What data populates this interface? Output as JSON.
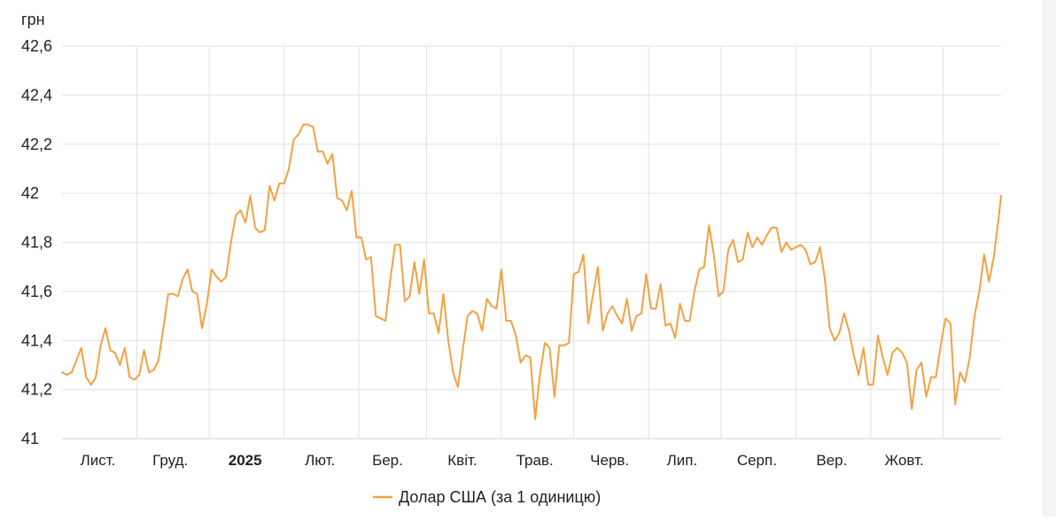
{
  "chart_data": {
    "type": "line",
    "ylabel": "грн",
    "ylim": [
      41,
      42.6
    ],
    "yticks": [
      "41",
      "41,2",
      "41,4",
      "41,6",
      "41,8",
      "42",
      "42,2",
      "42,4",
      "42,6"
    ],
    "ytick_values": [
      41,
      41.2,
      41.4,
      41.6,
      41.8,
      42,
      42.2,
      42.4,
      42.6
    ],
    "xlim": [
      "2024-10-01",
      "2025-10-25"
    ],
    "xticks": [
      {
        "date": "2024-11-01",
        "label": "Лист.",
        "bold": false
      },
      {
        "date": "2024-12-01",
        "label": "Груд.",
        "bold": false
      },
      {
        "date": "2025-01-01",
        "label": "2025",
        "bold": true
      },
      {
        "date": "2025-02-01",
        "label": "Лют.",
        "bold": false
      },
      {
        "date": "2025-03-01",
        "label": "Бер.",
        "bold": false
      },
      {
        "date": "2025-04-01",
        "label": "Квіт.",
        "bold": false
      },
      {
        "date": "2025-05-01",
        "label": "Трав.",
        "bold": false
      },
      {
        "date": "2025-06-01",
        "label": "Черв.",
        "bold": false
      },
      {
        "date": "2025-07-01",
        "label": "Лип.",
        "bold": false
      },
      {
        "date": "2025-08-01",
        "label": "Серп.",
        "bold": false
      },
      {
        "date": "2025-09-01",
        "label": "Вер.",
        "bold": false
      },
      {
        "date": "2025-10-01",
        "label": "Жовт.",
        "bold": false
      }
    ],
    "grid": true,
    "legend_position": "bottom-center",
    "series": [
      {
        "name": "Долар США (за 1 одиницю)",
        "color": "#f5a142",
        "points": [
          [
            "2024-10-01",
            41.27
          ],
          [
            "2024-10-03",
            41.26
          ],
          [
            "2024-10-05",
            41.27
          ],
          [
            "2024-10-07",
            41.32
          ],
          [
            "2024-10-09",
            41.37
          ],
          [
            "2024-10-11",
            41.25
          ],
          [
            "2024-10-13",
            41.22
          ],
          [
            "2024-10-15",
            41.25
          ],
          [
            "2024-10-17",
            41.38
          ],
          [
            "2024-10-19",
            41.45
          ],
          [
            "2024-10-21",
            41.36
          ],
          [
            "2024-10-23",
            41.35
          ],
          [
            "2024-10-25",
            41.3
          ],
          [
            "2024-10-27",
            41.37
          ],
          [
            "2024-10-29",
            41.25
          ],
          [
            "2024-10-31",
            41.24
          ],
          [
            "2024-11-02",
            41.26
          ],
          [
            "2024-11-04",
            41.36
          ],
          [
            "2024-11-06",
            41.27
          ],
          [
            "2024-11-08",
            41.28
          ],
          [
            "2024-11-10",
            41.32
          ],
          [
            "2024-11-12",
            41.45
          ],
          [
            "2024-11-14",
            41.59
          ],
          [
            "2024-11-16",
            41.59
          ],
          [
            "2024-11-18",
            41.58
          ],
          [
            "2024-11-20",
            41.65
          ],
          [
            "2024-11-22",
            41.69
          ],
          [
            "2024-11-24",
            41.6
          ],
          [
            "2024-11-26",
            41.59
          ],
          [
            "2024-11-28",
            41.45
          ],
          [
            "2024-11-30",
            41.55
          ],
          [
            "2024-12-02",
            41.69
          ],
          [
            "2024-12-04",
            41.66
          ],
          [
            "2024-12-06",
            41.64
          ],
          [
            "2024-12-08",
            41.66
          ],
          [
            "2024-12-10",
            41.8
          ],
          [
            "2024-12-12",
            41.91
          ],
          [
            "2024-12-14",
            41.93
          ],
          [
            "2024-12-16",
            41.88
          ],
          [
            "2024-12-18",
            41.99
          ],
          [
            "2024-12-20",
            41.86
          ],
          [
            "2024-12-22",
            41.84
          ],
          [
            "2024-12-24",
            41.85
          ],
          [
            "2024-12-26",
            42.03
          ],
          [
            "2024-12-28",
            41.97
          ],
          [
            "2024-12-30",
            42.04
          ],
          [
            "2025-01-01",
            42.04
          ],
          [
            "2025-01-03",
            42.1
          ],
          [
            "2025-01-05",
            42.22
          ],
          [
            "2025-01-07",
            42.24
          ],
          [
            "2025-01-09",
            42.28
          ],
          [
            "2025-01-11",
            42.28
          ],
          [
            "2025-01-13",
            42.27
          ],
          [
            "2025-01-15",
            42.17
          ],
          [
            "2025-01-17",
            42.17
          ],
          [
            "2025-01-19",
            42.12
          ],
          [
            "2025-01-21",
            42.16
          ],
          [
            "2025-01-23",
            41.98
          ],
          [
            "2025-01-25",
            41.97
          ],
          [
            "2025-01-27",
            41.93
          ],
          [
            "2025-01-29",
            42.01
          ],
          [
            "2025-01-31",
            41.82
          ],
          [
            "2025-02-02",
            41.82
          ],
          [
            "2025-02-04",
            41.73
          ],
          [
            "2025-02-06",
            41.74
          ],
          [
            "2025-02-08",
            41.5
          ],
          [
            "2025-02-10",
            41.49
          ],
          [
            "2025-02-12",
            41.48
          ],
          [
            "2025-02-14",
            41.65
          ],
          [
            "2025-02-16",
            41.79
          ],
          [
            "2025-02-18",
            41.79
          ],
          [
            "2025-02-20",
            41.56
          ],
          [
            "2025-02-22",
            41.58
          ],
          [
            "2025-02-24",
            41.72
          ],
          [
            "2025-02-26",
            41.59
          ],
          [
            "2025-02-28",
            41.73
          ],
          [
            "2025-03-02",
            41.51
          ],
          [
            "2025-03-04",
            41.51
          ],
          [
            "2025-03-06",
            41.43
          ],
          [
            "2025-03-08",
            41.59
          ],
          [
            "2025-03-10",
            41.4
          ],
          [
            "2025-03-12",
            41.27
          ],
          [
            "2025-03-14",
            41.21
          ],
          [
            "2025-03-16",
            41.36
          ],
          [
            "2025-03-18",
            41.5
          ],
          [
            "2025-03-20",
            41.52
          ],
          [
            "2025-03-22",
            41.51
          ],
          [
            "2025-03-24",
            41.44
          ],
          [
            "2025-03-26",
            41.57
          ],
          [
            "2025-03-28",
            41.54
          ],
          [
            "2025-03-30",
            41.53
          ],
          [
            "2025-04-01",
            41.69
          ],
          [
            "2025-04-03",
            41.48
          ],
          [
            "2025-04-05",
            41.48
          ],
          [
            "2025-04-07",
            41.42
          ],
          [
            "2025-04-09",
            41.31
          ],
          [
            "2025-04-11",
            41.34
          ],
          [
            "2025-04-13",
            41.33
          ],
          [
            "2025-04-15",
            41.08
          ],
          [
            "2025-04-17",
            41.26
          ],
          [
            "2025-04-19",
            41.39
          ],
          [
            "2025-04-21",
            41.37
          ],
          [
            "2025-04-23",
            41.17
          ],
          [
            "2025-04-25",
            41.38
          ],
          [
            "2025-04-27",
            41.38
          ],
          [
            "2025-04-29",
            41.39
          ],
          [
            "2025-05-01",
            41.67
          ],
          [
            "2025-05-03",
            41.68
          ],
          [
            "2025-05-05",
            41.75
          ],
          [
            "2025-05-07",
            41.47
          ],
          [
            "2025-05-09",
            41.59
          ],
          [
            "2025-05-11",
            41.7
          ],
          [
            "2025-05-13",
            41.44
          ],
          [
            "2025-05-15",
            41.51
          ],
          [
            "2025-05-17",
            41.54
          ],
          [
            "2025-05-19",
            41.5
          ],
          [
            "2025-05-21",
            41.47
          ],
          [
            "2025-05-23",
            41.57
          ],
          [
            "2025-05-25",
            41.44
          ],
          [
            "2025-05-27",
            41.5
          ],
          [
            "2025-05-29",
            41.51
          ],
          [
            "2025-05-31",
            41.67
          ],
          [
            "2025-06-02",
            41.53
          ],
          [
            "2025-06-04",
            41.53
          ],
          [
            "2025-06-06",
            41.63
          ],
          [
            "2025-06-08",
            41.46
          ],
          [
            "2025-06-10",
            41.47
          ],
          [
            "2025-06-12",
            41.41
          ],
          [
            "2025-06-14",
            41.55
          ],
          [
            "2025-06-16",
            41.48
          ],
          [
            "2025-06-18",
            41.48
          ],
          [
            "2025-06-20",
            41.6
          ],
          [
            "2025-06-22",
            41.69
          ],
          [
            "2025-06-24",
            41.7
          ],
          [
            "2025-06-26",
            41.87
          ],
          [
            "2025-06-28",
            41.75
          ],
          [
            "2025-06-30",
            41.58
          ],
          [
            "2025-07-02",
            41.6
          ],
          [
            "2025-07-04",
            41.77
          ],
          [
            "2025-07-06",
            41.81
          ],
          [
            "2025-07-08",
            41.72
          ],
          [
            "2025-07-10",
            41.73
          ],
          [
            "2025-07-12",
            41.84
          ],
          [
            "2025-07-14",
            41.78
          ],
          [
            "2025-07-16",
            41.82
          ],
          [
            "2025-07-18",
            41.79
          ],
          [
            "2025-07-20",
            41.83
          ],
          [
            "2025-07-22",
            41.86
          ],
          [
            "2025-07-24",
            41.86
          ],
          [
            "2025-07-26",
            41.76
          ],
          [
            "2025-07-28",
            41.8
          ],
          [
            "2025-07-30",
            41.77
          ],
          [
            "2025-08-01",
            41.78
          ],
          [
            "2025-08-03",
            41.79
          ],
          [
            "2025-08-05",
            41.77
          ],
          [
            "2025-08-07",
            41.71
          ],
          [
            "2025-08-09",
            41.72
          ],
          [
            "2025-08-11",
            41.78
          ],
          [
            "2025-08-13",
            41.65
          ],
          [
            "2025-08-15",
            41.45
          ],
          [
            "2025-08-17",
            41.4
          ],
          [
            "2025-08-19",
            41.43
          ],
          [
            "2025-08-21",
            41.51
          ],
          [
            "2025-08-23",
            41.44
          ],
          [
            "2025-08-25",
            41.34
          ],
          [
            "2025-08-27",
            41.26
          ],
          [
            "2025-08-29",
            41.37
          ],
          [
            "2025-08-31",
            41.22
          ],
          [
            "2025-09-02",
            41.22
          ],
          [
            "2025-09-04",
            41.42
          ],
          [
            "2025-09-06",
            41.33
          ],
          [
            "2025-09-08",
            41.26
          ],
          [
            "2025-09-10",
            41.35
          ],
          [
            "2025-09-12",
            41.37
          ],
          [
            "2025-09-14",
            41.35
          ],
          [
            "2025-09-16",
            41.31
          ],
          [
            "2025-09-18",
            41.12
          ],
          [
            "2025-09-20",
            41.28
          ],
          [
            "2025-09-22",
            41.31
          ],
          [
            "2025-09-24",
            41.17
          ],
          [
            "2025-09-26",
            41.25
          ],
          [
            "2025-09-28",
            41.25
          ],
          [
            "2025-09-30",
            41.38
          ],
          [
            "2025-10-02",
            41.49
          ],
          [
            "2025-10-04",
            41.47
          ],
          [
            "2025-10-06",
            41.14
          ],
          [
            "2025-10-08",
            41.27
          ],
          [
            "2025-10-10",
            41.23
          ],
          [
            "2025-10-12",
            41.33
          ],
          [
            "2025-10-14",
            41.5
          ],
          [
            "2025-10-16",
            41.6
          ],
          [
            "2025-10-18",
            41.75
          ],
          [
            "2025-10-20",
            41.64
          ],
          [
            "2025-10-22",
            41.74
          ],
          [
            "2025-10-24",
            41.9
          ],
          [
            "2025-10-25",
            41.99
          ]
        ]
      }
    ]
  }
}
